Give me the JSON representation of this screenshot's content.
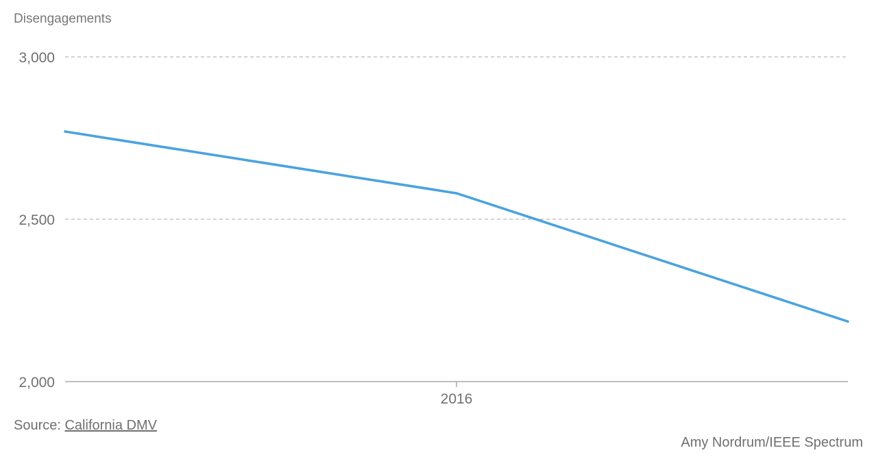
{
  "chart_data": {
    "type": "line",
    "ylabel": "Disengagements",
    "xlabel": "",
    "x": [
      2015,
      2016,
      2017
    ],
    "x_tick_values": [
      2016
    ],
    "x_tick_labels": [
      "2016"
    ],
    "xlim": [
      2015,
      2017
    ],
    "series": [
      {
        "values": [
          2770,
          2580,
          2185
        ],
        "color": "#4aa3df"
      }
    ],
    "ylim": [
      2000,
      3000
    ],
    "y_tick_values": [
      2000,
      2500,
      3000
    ],
    "y_tick_labels": [
      "2,000",
      "2,500",
      "3,000"
    ],
    "grid": true,
    "grid_style": "dashed"
  },
  "footer": {
    "source_prefix": "Source: ",
    "source_link": "California DMV",
    "credit": "Amy Nordrum/IEEE Spectrum"
  },
  "colors": {
    "line": "#4aa3df",
    "grid": "#b8b8b8",
    "axis": "#a8a8a8",
    "text": "#6f6f6f"
  }
}
